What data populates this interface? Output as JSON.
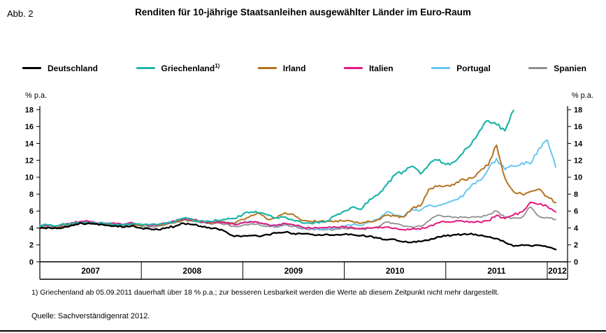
{
  "figure": {
    "tag": "Abb. 2",
    "title": "Renditen für 10-jährige Staatsanleihen ausgewählter Länder im Euro-Raum",
    "y_unit_left": "% p.a.",
    "y_unit_right": "% p.a.",
    "footnote": "1) Griechenland ab 05.09.2011 dauerhaft über 18 % p.a.; zur besseren Lesbarkeit werden die Werte ab diesem Zeitpunkt nicht mehr dargestellt.",
    "source": "Quelle: Sachverständigenrat 2012."
  },
  "legend": [
    {
      "label": "Deutschland",
      "sup": "",
      "color": "#000000"
    },
    {
      "label": "Griechenland",
      "sup": "1)",
      "color": "#1fb5aa"
    },
    {
      "label": "Irland",
      "sup": "",
      "color": "#b5731d"
    },
    {
      "label": "Italien",
      "sup": "",
      "color": "#e6187e"
    },
    {
      "label": "Portugal",
      "sup": "",
      "color": "#66c6ee"
    },
    {
      "label": "Spanien",
      "sup": "",
      "color": "#8f8f8f"
    }
  ],
  "chart_data": {
    "type": "line",
    "title": "Renditen für 10-jährige Staatsanleihen ausgewählter Länder im Euro-Raum",
    "ylabel": "% p.a.",
    "ylim": [
      0,
      18
    ],
    "ytick_step": 2,
    "xticks": [
      2007,
      2008,
      2009,
      2010,
      2011,
      2012
    ],
    "x_range": [
      2007.0,
      2012.2
    ],
    "points_per_year": 12,
    "sampling": "monthly from 2007-01 to 2012-02; Griechenland not shown after 05.09.2011",
    "series": [
      {
        "name": "Deutschland",
        "color": "#000000",
        "values": [
          3.95,
          4.05,
          3.95,
          4.15,
          4.3,
          4.55,
          4.5,
          4.35,
          4.3,
          4.25,
          4.1,
          4.3,
          4.0,
          3.9,
          3.8,
          4.05,
          4.2,
          4.55,
          4.4,
          4.2,
          4.05,
          3.9,
          3.55,
          3.0,
          3.05,
          3.1,
          3.0,
          3.2,
          3.4,
          3.5,
          3.35,
          3.3,
          3.25,
          3.2,
          3.25,
          3.2,
          3.25,
          3.2,
          3.1,
          3.05,
          2.8,
          2.6,
          2.65,
          2.35,
          2.3,
          2.4,
          2.55,
          2.95,
          3.05,
          3.2,
          3.25,
          3.35,
          3.1,
          2.95,
          2.75,
          2.3,
          1.85,
          2.0,
          1.9,
          1.95,
          1.75,
          1.45
        ]
      },
      {
        "name": "Griechenland",
        "color": "#1fb5aa",
        "values": [
          4.3,
          4.35,
          4.25,
          4.45,
          4.55,
          4.7,
          4.65,
          4.55,
          4.5,
          4.45,
          4.4,
          4.5,
          4.4,
          4.35,
          4.4,
          4.6,
          4.8,
          5.15,
          5.05,
          4.85,
          4.8,
          4.9,
          5.0,
          5.1,
          5.6,
          5.9,
          5.8,
          5.5,
          5.2,
          5.3,
          4.9,
          4.6,
          4.55,
          4.6,
          4.85,
          5.5,
          6.0,
          6.5,
          6.2,
          7.4,
          7.9,
          9.1,
          10.3,
          10.7,
          11.3,
          10.4,
          11.5,
          12.0,
          11.5,
          11.8,
          12.8,
          13.9,
          15.5,
          16.7,
          16.2,
          15.5,
          17.9,
          null,
          null,
          null,
          null,
          null
        ]
      },
      {
        "name": "Irland",
        "color": "#b5731d",
        "values": [
          4.0,
          4.1,
          4.05,
          4.25,
          4.4,
          4.6,
          4.55,
          4.45,
          4.4,
          4.35,
          4.3,
          4.45,
          4.3,
          4.25,
          4.3,
          4.5,
          4.7,
          5.0,
          4.9,
          4.7,
          4.6,
          4.7,
          4.6,
          4.55,
          5.0,
          5.5,
          5.7,
          5.0,
          5.2,
          5.8,
          5.6,
          4.9,
          4.8,
          4.75,
          4.8,
          4.85,
          4.8,
          4.75,
          4.55,
          4.75,
          5.0,
          5.5,
          5.4,
          5.3,
          6.3,
          6.6,
          8.6,
          8.9,
          9.0,
          9.1,
          9.8,
          9.9,
          10.7,
          11.4,
          13.8,
          9.9,
          8.3,
          8.0,
          8.3,
          8.6,
          7.7,
          7.0
        ]
      },
      {
        "name": "Italien",
        "color": "#e6187e",
        "values": [
          4.25,
          4.3,
          4.25,
          4.45,
          4.6,
          4.8,
          4.75,
          4.6,
          4.55,
          4.5,
          4.45,
          4.6,
          4.4,
          4.35,
          4.4,
          4.6,
          4.8,
          5.1,
          5.0,
          4.8,
          4.7,
          4.75,
          4.6,
          4.4,
          4.6,
          4.75,
          4.6,
          4.4,
          4.3,
          4.55,
          4.4,
          4.1,
          4.0,
          4.0,
          4.05,
          4.1,
          4.1,
          4.05,
          3.95,
          4.0,
          4.0,
          4.1,
          4.0,
          3.8,
          3.9,
          3.85,
          4.2,
          4.6,
          4.7,
          4.75,
          4.8,
          4.75,
          4.7,
          4.85,
          5.5,
          5.1,
          5.55,
          5.9,
          7.05,
          6.8,
          6.55,
          5.9
        ]
      },
      {
        "name": "Portugal",
        "color": "#66c6ee",
        "values": [
          4.2,
          4.3,
          4.2,
          4.4,
          4.55,
          4.75,
          4.7,
          4.6,
          4.55,
          4.5,
          4.45,
          4.55,
          4.4,
          4.35,
          4.4,
          4.6,
          4.8,
          5.1,
          4.95,
          4.75,
          4.65,
          4.75,
          4.65,
          4.5,
          4.6,
          4.75,
          4.6,
          4.4,
          4.25,
          4.5,
          4.3,
          4.0,
          3.95,
          3.85,
          3.9,
          4.0,
          4.2,
          4.4,
          4.3,
          4.8,
          5.0,
          5.9,
          5.5,
          5.3,
          6.2,
          6.1,
          6.7,
          6.6,
          6.9,
          7.3,
          7.7,
          9.0,
          9.6,
          10.9,
          12.2,
          10.9,
          11.3,
          11.7,
          11.6,
          13.4,
          14.4,
          11.2
        ]
      },
      {
        "name": "Spanien",
        "color": "#8f8f8f",
        "values": [
          4.1,
          4.2,
          4.1,
          4.3,
          4.45,
          4.65,
          4.6,
          4.5,
          4.45,
          4.4,
          4.35,
          4.45,
          4.2,
          4.15,
          4.2,
          4.4,
          4.6,
          4.9,
          4.8,
          4.6,
          4.55,
          4.6,
          4.45,
          4.2,
          4.3,
          4.5,
          4.35,
          4.2,
          4.1,
          4.4,
          4.2,
          3.9,
          3.85,
          3.8,
          3.8,
          3.85,
          3.95,
          3.95,
          3.85,
          3.95,
          4.15,
          4.7,
          4.5,
          4.2,
          4.1,
          4.2,
          4.85,
          5.5,
          5.35,
          5.3,
          5.25,
          5.3,
          5.3,
          5.6,
          6.0,
          5.25,
          5.2,
          5.25,
          6.5,
          5.4,
          5.25,
          5.0
        ]
      }
    ]
  }
}
